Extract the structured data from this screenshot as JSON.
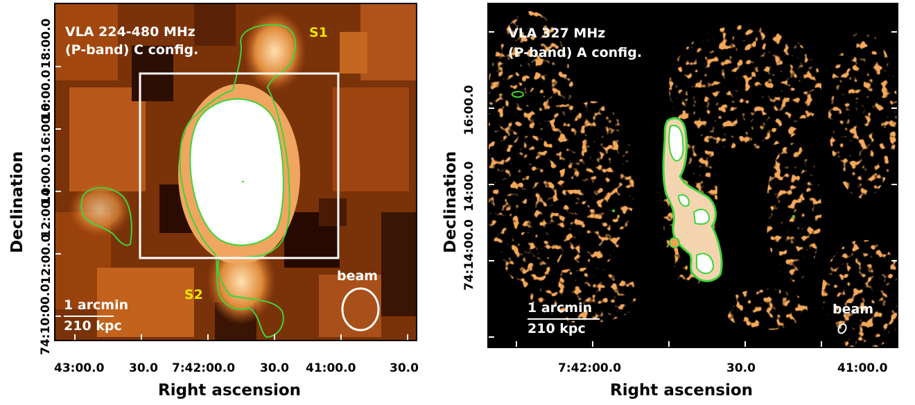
{
  "left_panel": {
    "title_line1": "VLA 224-480 MHz",
    "title_line2": "(P-band) C config.",
    "source_labels": [
      "S1",
      "S2"
    ],
    "beam_label": "beam",
    "scale_line1": "1 arcmin",
    "scale_line2": "210 kpc",
    "x_ticks": [
      "43:00.0",
      "30.0",
      "7:42:00.0",
      "30.0",
      "41:00.0",
      "30.0"
    ],
    "y_ticks": [
      "74:10:00.0",
      "12:00.0",
      "12:00.0",
      "14:00.0",
      "16:00.0",
      "16:00.0",
      "18:00.0"
    ],
    "x_title": "Right ascension",
    "y_title": "Declination",
    "colors": {
      "contour": "#3fd43a",
      "box": "#ffffff",
      "label": "#f1e400"
    }
  },
  "right_panel": {
    "title_line1": "VLA 327 MHz",
    "title_line2": "(P-band) A config.",
    "beam_label": "beam",
    "scale_line1": "1 arcmin",
    "scale_line2": "210 kpc",
    "x_ticks": [
      "7:42:00.0",
      "30.0",
      "41:00.0"
    ],
    "y_ticks": [
      "74:14:00.0",
      "14:00.0",
      "16:00.0"
    ],
    "x_title": "Right ascension",
    "y_title": "Declination",
    "colors": {
      "contour": "#3fd43a",
      "emission": "#e8641a"
    }
  }
}
